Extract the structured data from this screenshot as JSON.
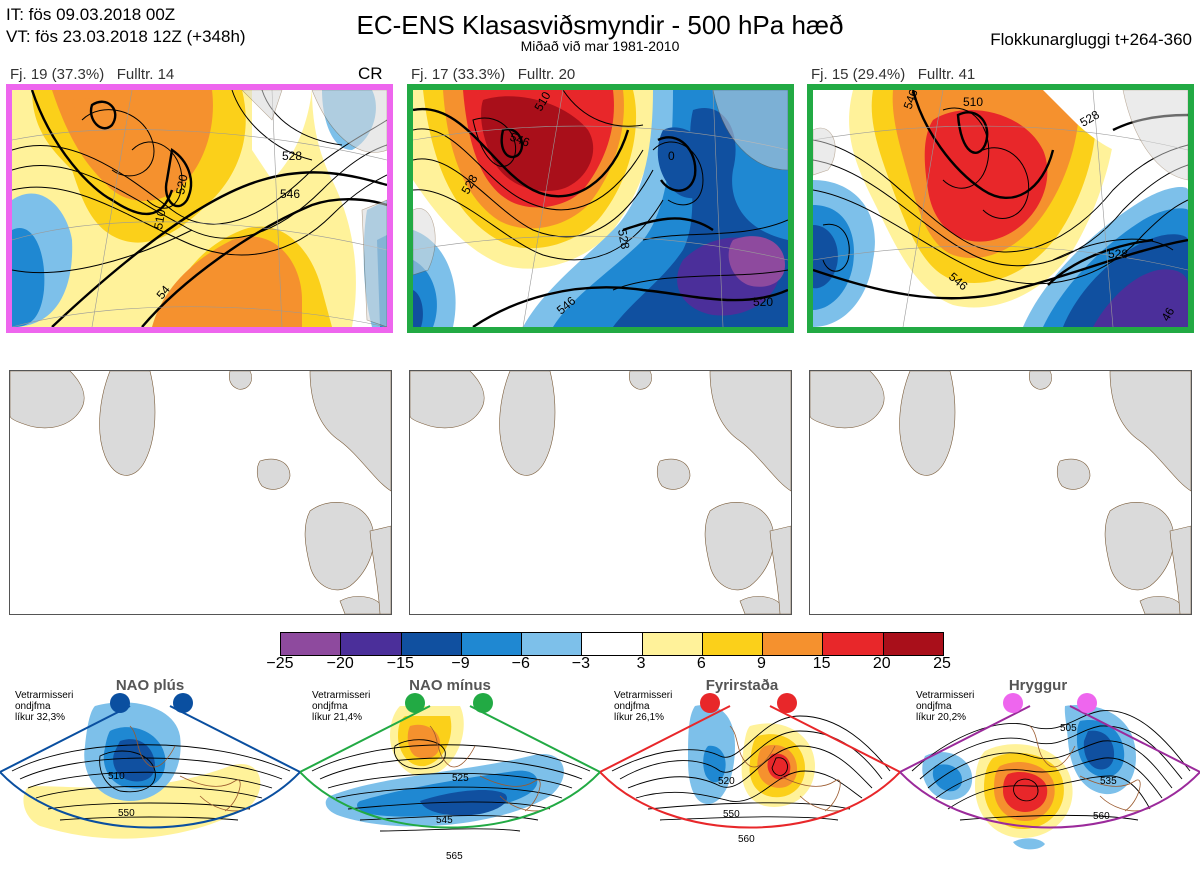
{
  "header": {
    "line1": "IT: fös 09.03.2018 00Z",
    "line2": "VT: fös 23.03.2018 12Z  (+348h)",
    "title": "EC-ENS Klasasviðsmyndir - 500 hPa hæð",
    "subtitle": "Miðað við mar 1981-2010",
    "window": "Flokkunargluggi t+264-360"
  },
  "colors": {
    "magenta": "#ee66ee",
    "green": "#22aa44",
    "navo_blue": "#0a4fa0",
    "red": "#e8272a",
    "purple": "#9b2a9b"
  },
  "clusters": [
    {
      "label": "Fj. 19 (37.3%)",
      "rep": "Fulltr. 14",
      "tag": "CR",
      "border_color": "#ee66ee",
      "contours": [
        "510",
        "520",
        "528",
        "546",
        "54"
      ]
    },
    {
      "label": "Fj. 17 (33.3%)",
      "rep": "Fulltr. 20",
      "tag": "",
      "border_color": "#22aa44",
      "contours": [
        "510",
        "546",
        "528",
        "0",
        "546",
        "520",
        "528"
      ]
    },
    {
      "label": "Fj. 15 (29.4%)",
      "rep": "Fulltr. 41",
      "tag": "",
      "border_color": "#22aa44",
      "contours": [
        "546",
        "510",
        "528",
        "546",
        "528",
        "46"
      ]
    }
  ],
  "colorbar": {
    "ticks": [
      "−25",
      "−20",
      "−15",
      "−9",
      "−6",
      "−3",
      "3",
      "6",
      "9",
      "15",
      "20",
      "25"
    ],
    "colors": [
      "#8e4a9e",
      "#4b2f9a",
      "#1050a0",
      "#1f88d2",
      "#7dc0ea",
      "#ffffff",
      "#fff29a",
      "#fbd01a",
      "#f5912e",
      "#e8272a",
      "#a90f1a"
    ]
  },
  "regimes": [
    {
      "name": "NAO plús",
      "note1": "Vetrarmisseri",
      "note2": "ondjfma",
      "note3": "líkur 32,3%",
      "color": "#0a4fa0",
      "contours": [
        "510",
        "550"
      ]
    },
    {
      "name": "NAO mínus",
      "note1": "Vetrarmisseri",
      "note2": "ondjfma",
      "note3": "líkur 21,4%",
      "color": "#22aa44",
      "contours": [
        "525",
        "545",
        "565"
      ]
    },
    {
      "name": "Fyrirstaða",
      "note1": "Vetrarmisseri",
      "note2": "ondjfma",
      "note3": "líkur 26,1%",
      "color": "#e8272a",
      "contours": [
        "520",
        "550",
        "560"
      ]
    },
    {
      "name": "Hryggur",
      "note1": "Vetrarmisseri",
      "note2": "ondjfma",
      "note3": "líkur 20,2%",
      "color": "#9b2a9b",
      "dot_color": "#ee66ee",
      "contours": [
        "505",
        "535",
        "560"
      ]
    }
  ]
}
